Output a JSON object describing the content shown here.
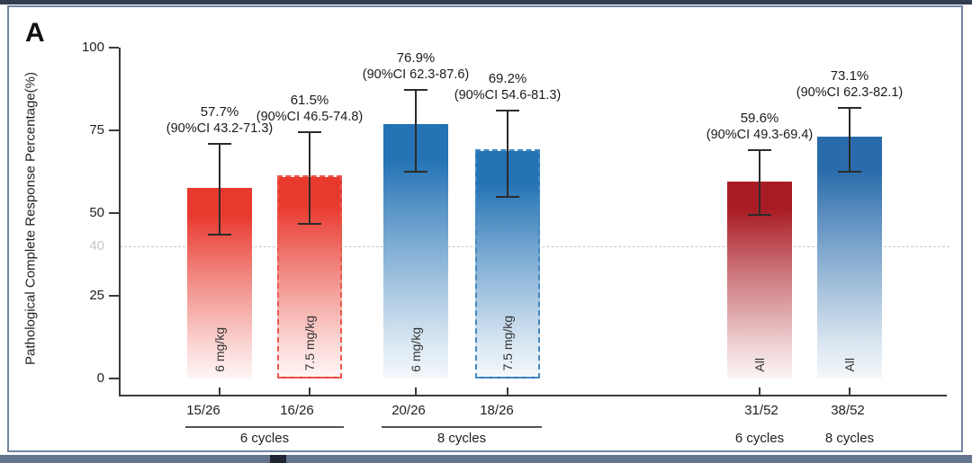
{
  "panel_label": "A",
  "frame": {
    "border_color": "#7285a1",
    "strip_top_color": "#333d52",
    "strip_bottom_color": "#64748c",
    "strip_bottom_mark_color": "#1e2634"
  },
  "chart_data": {
    "type": "bar",
    "title": "",
    "xlabel": "",
    "ylabel": "Pathological Complete Response Percentage(%)",
    "ylim": [
      0,
      100
    ],
    "yticks": [
      0,
      25,
      50,
      75,
      100
    ],
    "grid": "off",
    "legend": "none",
    "reference_line": {
      "value": 40,
      "label": "40",
      "style": "dashed",
      "color": "#c9c9c9"
    },
    "error_bar_note": "90% confidence intervals shown as capped whiskers",
    "bars": [
      {
        "group": "6 cycles",
        "dose": "6 mg/kg",
        "fraction": "15/26",
        "value": 57.7,
        "ci_low": 43.2,
        "ci_high": 71.3,
        "value_label": "57.7%",
        "ci_label": "(90%CI 43.2-71.3)",
        "color": "#e8392e",
        "style": "solid"
      },
      {
        "group": "6 cycles",
        "dose": "7.5 mg/kg",
        "fraction": "16/26",
        "value": 61.5,
        "ci_low": 46.5,
        "ci_high": 74.8,
        "value_label": "61.5%",
        "ci_label": "(90%CI 46.5-74.8)",
        "color": "#e8392e",
        "style": "dashed"
      },
      {
        "group": "8 cycles",
        "dose": "6 mg/kg",
        "fraction": "20/26",
        "value": 76.9,
        "ci_low": 62.3,
        "ci_high": 87.6,
        "value_label": "76.9%",
        "ci_label": "(90%CI 62.3-87.6)",
        "color": "#2473b5",
        "style": "solid"
      },
      {
        "group": "8 cycles",
        "dose": "7.5 mg/kg",
        "fraction": "18/26",
        "value": 69.2,
        "ci_low": 54.6,
        "ci_high": 81.3,
        "value_label": "69.2%",
        "ci_label": "(90%CI 54.6-81.3)",
        "color": "#2473b5",
        "style": "dashed"
      },
      {
        "group": "6 cycles",
        "dose": "All",
        "fraction": "31/52",
        "value": 59.6,
        "ci_low": 49.3,
        "ci_high": 69.4,
        "value_label": "59.6%",
        "ci_label": "(90%CI 49.3-69.4)",
        "color": "#a91c23",
        "style": "solid"
      },
      {
        "group": "8 cycles",
        "dose": "All",
        "fraction": "38/52",
        "value": 73.1,
        "ci_low": 62.3,
        "ci_high": 82.1,
        "value_label": "73.1%",
        "ci_label": "(90%CI 62.3-82.1)",
        "color": "#2a6cab",
        "style": "solid"
      }
    ],
    "group_axis": [
      {
        "label": "6 cycles",
        "underline": true,
        "bars": [
          0,
          1
        ]
      },
      {
        "label": "8 cycles",
        "underline": true,
        "bars": [
          2,
          3
        ]
      },
      {
        "label": "6 cycles",
        "underline": false,
        "bars": [
          4
        ]
      },
      {
        "label": "8 cycles",
        "underline": false,
        "bars": [
          5
        ]
      }
    ]
  }
}
